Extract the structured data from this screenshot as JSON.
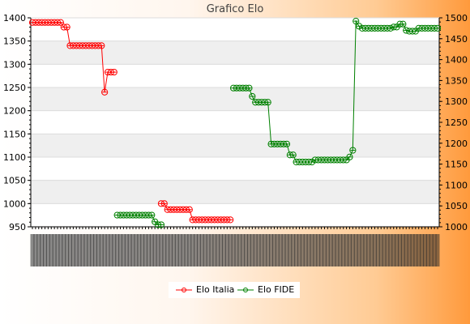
{
  "chart_data": {
    "type": "line",
    "title": "Grafico Elo",
    "xlabel": "",
    "ylabel": "",
    "ylabel_right": "",
    "y_left_ticks": [
      950,
      1000,
      1050,
      1100,
      1150,
      1200,
      1250,
      1300,
      1350,
      1400
    ],
    "y_right_ticks": [
      1000,
      1050,
      1100,
      1150,
      1200,
      1250,
      1300,
      1350,
      1400,
      1450,
      1500
    ],
    "ylim_left": [
      950,
      1400
    ],
    "ylim_right": [
      1000,
      1500
    ],
    "grid": "horizontal-bands",
    "legend_position": "bottom",
    "series": [
      {
        "name": "Elo Italia",
        "axis": "left",
        "color": "#ff0000",
        "start_index": 0,
        "values": [
          1390,
          1390,
          1390,
          1390,
          1390,
          1390,
          1390,
          1390,
          1390,
          1390,
          1380,
          1380,
          1340,
          1340,
          1340,
          1340,
          1340,
          1340,
          1340,
          1340,
          1340,
          1340,
          1340,
          1240,
          1283,
          1283,
          1283,
          null,
          null,
          null,
          null,
          null,
          null,
          null,
          null,
          null,
          null,
          null,
          null,
          null,
          null,
          1000,
          1000,
          987,
          987,
          987,
          987,
          987,
          987,
          987,
          987,
          965,
          965,
          965,
          965,
          965,
          965,
          965,
          965,
          965,
          965,
          965,
          965,
          965
        ]
      },
      {
        "name": "Elo FIDE",
        "axis": "right",
        "color": "#008000",
        "start_index": 27,
        "values": [
          1028,
          1028,
          1028,
          1028,
          1028,
          1028,
          1028,
          1028,
          1028,
          1028,
          1028,
          1028,
          1012,
          1005,
          1005,
          null,
          null,
          null,
          null,
          null,
          null,
          null,
          null,
          null,
          null,
          null,
          null,
          null,
          null,
          null,
          null,
          null,
          null,
          null,
          null,
          null,
          null,
          1332,
          1332,
          1332,
          1332,
          1332,
          1332,
          1312,
          1298,
          1298,
          1298,
          1298,
          1298,
          1198,
          1198,
          1198,
          1198,
          1198,
          1198,
          1172,
          1172,
          1155,
          1155,
          1155,
          1155,
          1155,
          1155,
          1160,
          1160,
          1160,
          1160,
          1160,
          1160,
          1160,
          1160,
          1160,
          1160,
          1160,
          1167,
          1183,
          1492,
          1480,
          1475,
          1475,
          1475,
          1475,
          1475,
          1475,
          1475,
          1475,
          1475,
          1475,
          1478,
          1478,
          1485,
          1485,
          1470,
          1468,
          1468,
          1468,
          1475,
          1475,
          1475,
          1475,
          1475,
          1475,
          1475
        ]
      }
    ]
  },
  "legend": [
    {
      "label": "Elo Italia",
      "color": "#ff0000"
    },
    {
      "label": "Elo FIDE",
      "color": "#008000"
    }
  ]
}
